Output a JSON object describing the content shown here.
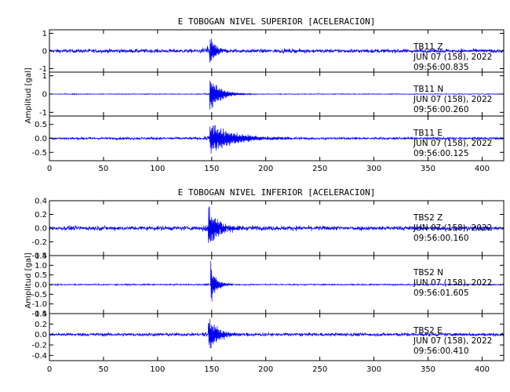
{
  "chart_data": [
    {
      "type": "line",
      "title": "E TOBOGAN NIVEL SUPERIOR [ACELERACION]",
      "ylabel": "Amplitud [gal]",
      "xlim": [
        0,
        420
      ],
      "x_ticks": [
        "0",
        "50",
        "100",
        "150",
        "200",
        "250",
        "300",
        "350",
        "400"
      ],
      "series": [
        {
          "name": "TB11 Z",
          "station": "TB11",
          "component": "Z",
          "date": "JUN 07 (158), 2022",
          "time": "09:56:00.835",
          "ylim": [
            -1.2,
            1.2
          ],
          "yticks": [
            -1,
            0,
            1
          ],
          "ytick_labels": [
            "-1",
            "0",
            "1"
          ],
          "noise": 0.1,
          "event_x": 148,
          "peak": 1.1,
          "decay": 5
        },
        {
          "name": "TB11 N",
          "station": "TB11",
          "component": "N",
          "date": "JUN 07 (158), 2022",
          "time": "09:56:00.260",
          "ylim": [
            -1.2,
            1.2
          ],
          "yticks": [
            -1,
            0,
            1
          ],
          "ytick_labels": [
            "-1",
            "0",
            "1"
          ],
          "noise": 0.02,
          "event_x": 148,
          "peak": 1.1,
          "decay": 10
        },
        {
          "name": "TB11 E",
          "station": "TB11",
          "component": "E",
          "date": "JUN 07 (158), 2022",
          "time": "09:56:00.125",
          "ylim": [
            -0.8,
            0.8
          ],
          "yticks": [
            -0.5,
            0.0,
            0.5
          ],
          "ytick_labels": [
            "-0.5",
            "0.0",
            "0.5"
          ],
          "noise": 0.04,
          "event_x": 148,
          "peak": 0.65,
          "decay": 22
        }
      ]
    },
    {
      "type": "line",
      "title": "E TOBOGAN NIVEL INFERIOR [ACELERACION]",
      "ylabel": "Amplitud [gal]",
      "xlim": [
        0,
        420
      ],
      "x_ticks": [
        "0",
        "50",
        "100",
        "150",
        "200",
        "250",
        "300",
        "350",
        "400"
      ],
      "series": [
        {
          "name": "TBS2 Z",
          "station": "TBS2",
          "component": "Z",
          "date": "JUN 07 (158), 2022",
          "time": "09:56:00.160",
          "ylim": [
            -0.4,
            0.4
          ],
          "yticks": [
            -0.4,
            -0.2,
            0.0,
            0.2,
            0.4
          ],
          "ytick_labels": [
            "-0.4",
            "-0.2",
            "0.0",
            "0.2",
            "0.4"
          ],
          "noise": 0.03,
          "event_x": 147,
          "peak": 0.38,
          "decay": 9
        },
        {
          "name": "TBS2 N",
          "station": "TBS2",
          "component": "N",
          "date": "JUN 07 (158), 2022",
          "time": "09:56:01.605",
          "ylim": [
            -1.5,
            1.5
          ],
          "yticks": [
            -1.5,
            -1.0,
            -0.5,
            0.0,
            0.5,
            1.0,
            1.5
          ],
          "ytick_labels": [
            "-1.5",
            "-1.0",
            "-0.5",
            "0.0",
            "0.5",
            "1.0",
            "1.5"
          ],
          "noise": 0.03,
          "event_x": 149,
          "peak": 1.3,
          "decay": 5
        },
        {
          "name": "TBS2 E",
          "station": "TBS2",
          "component": "E",
          "date": "JUN 07 (158), 2022",
          "time": "09:56:00.410",
          "ylim": [
            -0.5,
            0.4
          ],
          "yticks": [
            -0.4,
            -0.2,
            0.0,
            0.2,
            0.4
          ],
          "ytick_labels": [
            "-0.4",
            "-0.2",
            "0.0",
            "0.2",
            "0.4"
          ],
          "noise": 0.03,
          "event_x": 147,
          "peak": 0.4,
          "decay": 9
        }
      ]
    }
  ]
}
